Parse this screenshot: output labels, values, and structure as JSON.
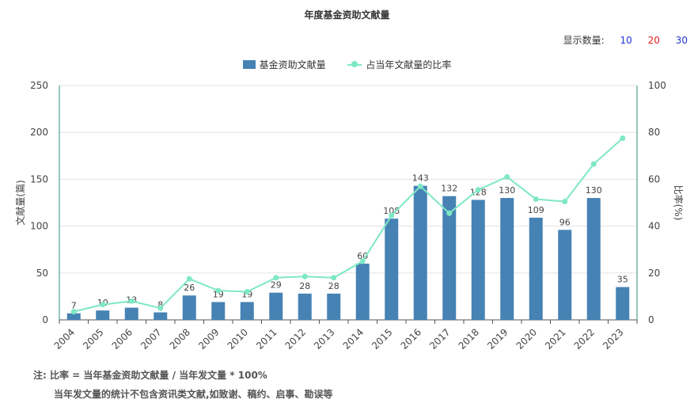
{
  "title": "年度基金资助文献量",
  "count_selector": {
    "label": "显示数量:",
    "options": [
      {
        "label": "10",
        "color": "#2233cc"
      },
      {
        "label": "20",
        "color": "#e02020"
      },
      {
        "label": "30",
        "color": "#2233cc"
      }
    ]
  },
  "legend": {
    "bar_label": "基金资助文献量",
    "line_label": "占当年文献量的比率"
  },
  "notes": {
    "line1": "注:  比率 = 当年基金资助文献量 / 当年发文量 * 100%",
    "line2": "当年发文量的统计不包含资讯类文献,如致谢、稿约、启事、勘误等"
  },
  "colors": {
    "bar": "#4682b4",
    "line": "#7ee8c5",
    "axis_left": "#2a8f7e",
    "grid": "#e3e3e3"
  },
  "chart_data": {
    "type": "bar",
    "categories": [
      "2004",
      "2005",
      "2006",
      "2007",
      "2008",
      "2009",
      "2010",
      "2011",
      "2012",
      "2013",
      "2014",
      "2015",
      "2016",
      "2017",
      "2018",
      "2019",
      "2020",
      "2021",
      "2022",
      "2023"
    ],
    "series": [
      {
        "name": "基金资助文献量",
        "type": "bar",
        "axis": "left",
        "values": [
          7,
          10,
          13,
          8,
          26,
          19,
          19,
          29,
          28,
          28,
          60,
          108,
          143,
          132,
          128,
          130,
          109,
          96,
          130,
          35
        ]
      },
      {
        "name": "占当年文献量的比率",
        "type": "line",
        "axis": "right",
        "values": [
          3.5,
          6.5,
          8,
          5,
          17.5,
          12.5,
          12,
          18,
          18.5,
          18,
          25,
          44.5,
          57,
          45.5,
          55.5,
          61,
          51.5,
          50.5,
          66.5,
          77.5
        ]
      }
    ],
    "ylabel": "文献量(篇)",
    "y2label": "比率(%)",
    "ylim": [
      0,
      250
    ],
    "y2lim": [
      0,
      100
    ],
    "yticks": [
      0,
      50,
      100,
      150,
      200,
      250
    ],
    "y2ticks": [
      0,
      20,
      40,
      60,
      80,
      100
    ],
    "grid": true,
    "legend_position": "top-center"
  }
}
